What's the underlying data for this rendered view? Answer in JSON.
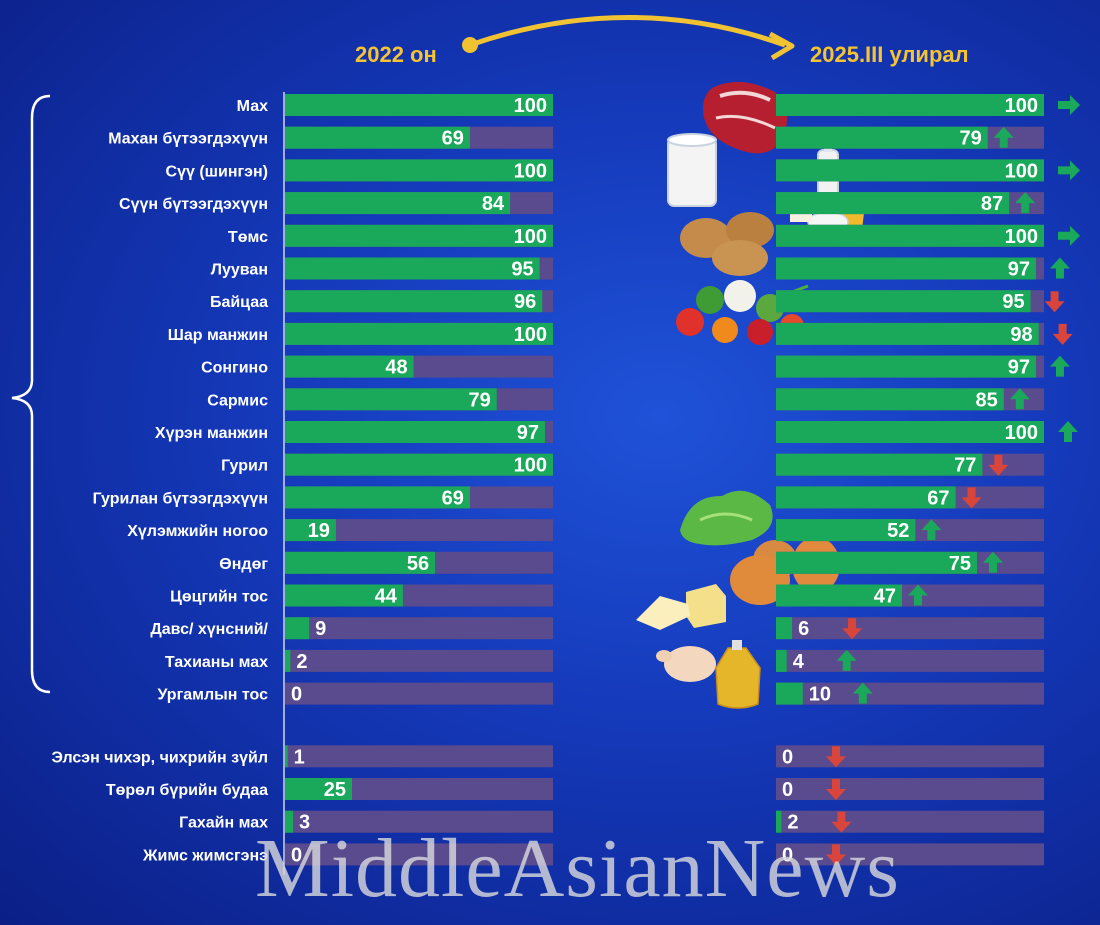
{
  "header": {
    "left_label": "2022 он",
    "right_label": "2025.III улирал"
  },
  "watermark": "MiddleAsianNews",
  "colors": {
    "fill": "#1aa85a",
    "track": "#5a4a8e",
    "up": "#1aa85a",
    "down": "#d9453b",
    "header": "#f7c431"
  },
  "chart_data": [
    {
      "type": "bar",
      "title": "2022 он",
      "xlim": [
        0,
        100
      ],
      "categories": [
        "Мах",
        "Махан бүтээгдэхүүн",
        "Сүү (шингэн)",
        "Сүүн бүтээгдэхүүн",
        "Төмс",
        "Лууван",
        "Байцаа",
        "Шар манжин",
        "Сонгино",
        "Сармис",
        "Хүрэн манжин",
        "Гурил",
        "Гурилан бүтээгдэхүүн",
        "Хүлэмжийн ногоо",
        "Өндөг",
        "Цөцгийн тос",
        "Давс/ хүнсний/",
        "Тахианы мах",
        "Ургамлын тос",
        "Элсэн чихэр, чихрийн зүйл",
        "Төрөл бүрийн будаа",
        "Гахайн мах",
        "Жимс жимсгэнэ"
      ],
      "values": [
        100,
        69,
        100,
        84,
        100,
        95,
        96,
        100,
        48,
        79,
        97,
        100,
        69,
        19,
        56,
        44,
        9,
        2,
        0,
        1,
        25,
        3,
        0
      ]
    },
    {
      "type": "bar",
      "title": "2025.III улирал",
      "xlim": [
        0,
        100
      ],
      "categories": [
        "Мах",
        "Махан бүтээгдэхүүн",
        "Сүү (шингэн)",
        "Сүүн бүтээгдэхүүн",
        "Төмс",
        "Лууван",
        "Байцаа",
        "Шар манжин",
        "Сонгино",
        "Сармис",
        "Хүрэн манжин",
        "Гурил",
        "Гурилан бүтээгдэхүүн",
        "Хүлэмжийн ногоо",
        "Өндөг",
        "Цөцгийн тос",
        "Давс/ хүнсний/",
        "Тахианы мах",
        "Ургамлын тос",
        "Элсэн чихэр, чихрийн зүйл",
        "Төрөл бүрийн будаа",
        "Гахайн мах",
        "Жимс жимсгэнэ"
      ],
      "values": [
        100,
        79,
        100,
        87,
        100,
        97,
        95,
        98,
        97,
        85,
        100,
        77,
        67,
        52,
        75,
        47,
        6,
        4,
        10,
        0,
        0,
        2,
        0
      ],
      "trend": [
        "same",
        "up",
        "same",
        "up",
        "same",
        "up",
        "down",
        "down",
        "up",
        "up",
        "up",
        "down",
        "down",
        "up",
        "up",
        "up",
        "down",
        "up",
        "up",
        "down",
        "down",
        "down",
        "down"
      ]
    }
  ]
}
